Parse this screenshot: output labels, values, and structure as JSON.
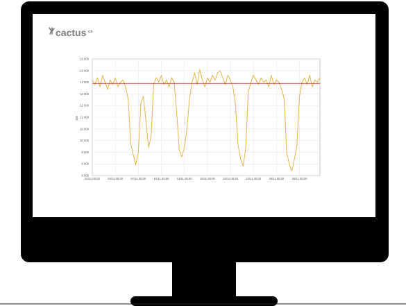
{
  "logo": {
    "name": "cactus",
    "suffix": "cs"
  },
  "chart_data": {
    "type": "line",
    "ylabel": "kW",
    "x": [
      "01/11 00:00",
      "01/11 08:00",
      "01/11 16:00",
      "02/11 00:00",
      "02/11 08:00",
      "02/11 16:00",
      "03/11 00:00",
      "03/11 08:00",
      "03/11 16:00",
      "04/11 00:00",
      "04/11 08:00",
      "04/11 16:00",
      "05/11 00:00",
      "05/11 08:00",
      "05/11 16:00",
      "06/11 00:00",
      "06/11 08:00",
      "06/11 16:00",
      "07/11 00:00",
      "07/11 08:00",
      "07/11 16:00",
      "08/11 00:00",
      "08/11 08:00",
      "08/11 16:00",
      "09/11 00:00",
      "09/11 08:00",
      "09/11 16:00",
      "10/11 00:00",
      "10/11 08:00",
      "10/11 16:00",
      "11/11 00:00",
      "11/11 08:00",
      "11/11 16:00",
      "12/11 00:00",
      "12/11 08:00",
      "12/11 16:00",
      "13/11 00:00",
      "13/11 08:00",
      "13/11 16:00",
      "14/11 00:00",
      "14/11 08:00",
      "14/11 16:00",
      "15/11 00:00",
      "15/11 08:00",
      "15/11 16:00",
      "16/11 00:00",
      "16/11 08:00",
      "16/11 16:00",
      "17/11 00:00",
      "17/11 08:00",
      "17/11 16:00",
      "18/11 00:00",
      "18/11 08:00",
      "18/11 16:00",
      "19/11 00:00",
      "19/11 08:00",
      "19/11 16:00",
      "20/11 00:00",
      "20/11 08:00",
      "20/11 16:00",
      "21/11 00:00",
      "21/11 08:00",
      "21/11 16:00",
      "22/11 00:00",
      "22/11 08:00",
      "22/11 16:00",
      "23/11 00:00",
      "23/11 08:00",
      "23/11 16:00",
      "24/11 00:00",
      "24/11 08:00",
      "24/11 16:00",
      "25/11 00:00",
      "25/11 08:00",
      "25/11 16:00",
      "26/11 00:00",
      "26/11 08:00",
      "26/11 16:00",
      "27/11 00:00",
      "27/11 08:00",
      "27/11 16:00",
      "28/11 00:00",
      "28/11 08:00",
      "28/11 16:00",
      "29/11 00:00",
      "29/11 08:00",
      "29/11 16:00",
      "30/11 00:00",
      "30/11 08:00",
      "30/11 16:00"
    ],
    "series": [
      {
        "color": "#e3b64c",
        "values": [
          12600,
          12400,
          12700,
          12300,
          12800,
          12500,
          12200,
          12600,
          12400,
          12700,
          12300,
          12500,
          12600,
          12300,
          11800,
          9900,
          9400,
          8950,
          9500,
          11600,
          11900,
          10800,
          9700,
          10200,
          12400,
          12700,
          12500,
          12800,
          12400,
          12600,
          12300,
          12700,
          12500,
          11200,
          9600,
          9300,
          9700,
          10500,
          11800,
          12500,
          12900,
          12400,
          13050,
          12600,
          12300,
          12700,
          12500,
          12800,
          12600,
          12900,
          13000,
          12700,
          12400,
          12800,
          12600,
          12300,
          11500,
          9800,
          9200,
          8900,
          9700,
          12100,
          12500,
          12800,
          12600,
          12400,
          12700,
          12500,
          12600,
          12300,
          12800,
          12400,
          12600,
          12500,
          12200,
          11800,
          9500,
          9000,
          8700,
          9200,
          9800,
          11900,
          12500,
          12700,
          12400,
          12800,
          12300,
          12600,
          12500,
          12700
        ]
      }
    ],
    "threshold": 12450,
    "threshold_color": "#b5413a",
    "xlim": [
      "01/11 00:00",
      "30/11 16:00"
    ],
    "xticks": [
      "01/11 00:00",
      "04/11 00:00",
      "07/11 00:00",
      "10/11 00:00",
      "13/11 00:00",
      "16/11 00:00",
      "19/11 00:00",
      "22/11 00:00",
      "25/11 00:00",
      "28/11 00:00"
    ],
    "ylim": [
      8500,
      13500
    ],
    "yticks": [
      {
        "value": 8500,
        "label": "8 500"
      },
      {
        "value": 9000,
        "label": "9 000"
      },
      {
        "value": 9500,
        "label": "9 500"
      },
      {
        "value": 10000,
        "label": "10 000"
      },
      {
        "value": 10500,
        "label": "10 500"
      },
      {
        "value": 11000,
        "label": "11 000"
      },
      {
        "value": 11500,
        "label": "11 500"
      },
      {
        "value": 12000,
        "label": "12 000"
      },
      {
        "value": 12500,
        "label": "12 500"
      },
      {
        "value": 13000,
        "label": "13 000"
      },
      {
        "value": 13500,
        "label": "13 500"
      }
    ],
    "grid": true
  }
}
